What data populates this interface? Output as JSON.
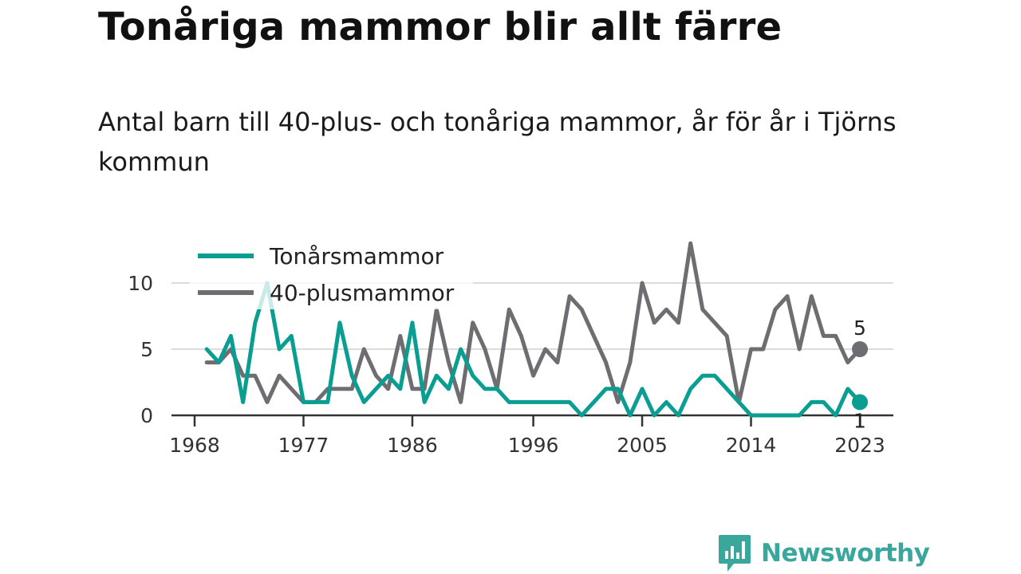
{
  "header": {
    "title": "Tonåriga mammor blir allt färre",
    "subtitle": "Antal barn till 40-plus- och tonåriga mammor, år för år i Tjörns kommun"
  },
  "brand": {
    "name": "Newsworthy",
    "logo_icon": "bar-chart-speech-bubble-icon",
    "color": "#3aa79d"
  },
  "chart_data": {
    "type": "line",
    "x": [
      1969,
      1970,
      1971,
      1972,
      1973,
      1974,
      1975,
      1976,
      1977,
      1978,
      1979,
      1980,
      1981,
      1982,
      1983,
      1984,
      1985,
      1986,
      1987,
      1988,
      1989,
      1990,
      1991,
      1992,
      1993,
      1994,
      1995,
      1996,
      1997,
      1998,
      1999,
      2000,
      2001,
      2002,
      2003,
      2004,
      2005,
      2006,
      2007,
      2008,
      2009,
      2010,
      2011,
      2012,
      2013,
      2014,
      2015,
      2016,
      2017,
      2018,
      2019,
      2020,
      2021,
      2022,
      2023
    ],
    "series": [
      {
        "name": "Tonårsmammor",
        "color": "#0a9e92",
        "values": [
          5,
          4,
          6,
          1,
          7,
          10,
          5,
          6,
          1,
          1,
          1,
          7,
          3,
          1,
          2,
          3,
          2,
          7,
          1,
          3,
          2,
          5,
          3,
          2,
          2,
          1,
          1,
          1,
          1,
          1,
          1,
          0,
          1,
          2,
          2,
          0,
          2,
          0,
          1,
          0,
          2,
          3,
          3,
          2,
          1,
          0,
          0,
          0,
          0,
          0,
          1,
          1,
          0,
          2,
          1
        ],
        "end_label": "1"
      },
      {
        "name": "40-plusmammor",
        "color": "#6e6d72",
        "values": [
          4,
          4,
          5,
          3,
          3,
          1,
          3,
          2,
          1,
          1,
          2,
          2,
          2,
          5,
          3,
          2,
          6,
          2,
          2,
          8,
          4,
          1,
          7,
          5,
          2,
          8,
          6,
          3,
          5,
          4,
          9,
          8,
          6,
          4,
          1,
          4,
          10,
          7,
          8,
          7,
          13,
          8,
          7,
          6,
          1,
          5,
          5,
          8,
          9,
          5,
          9,
          6,
          6,
          4,
          5
        ],
        "end_label": "5"
      }
    ],
    "x_ticks": [
      "1968",
      "1977",
      "1986",
      "1996",
      "2005",
      "2014",
      "2023"
    ],
    "y_ticks": [
      "0",
      "5",
      "10"
    ],
    "xlim": [
      1968,
      2025
    ],
    "ylim": [
      0,
      13
    ],
    "grid": true,
    "legend_position": "top-left"
  }
}
